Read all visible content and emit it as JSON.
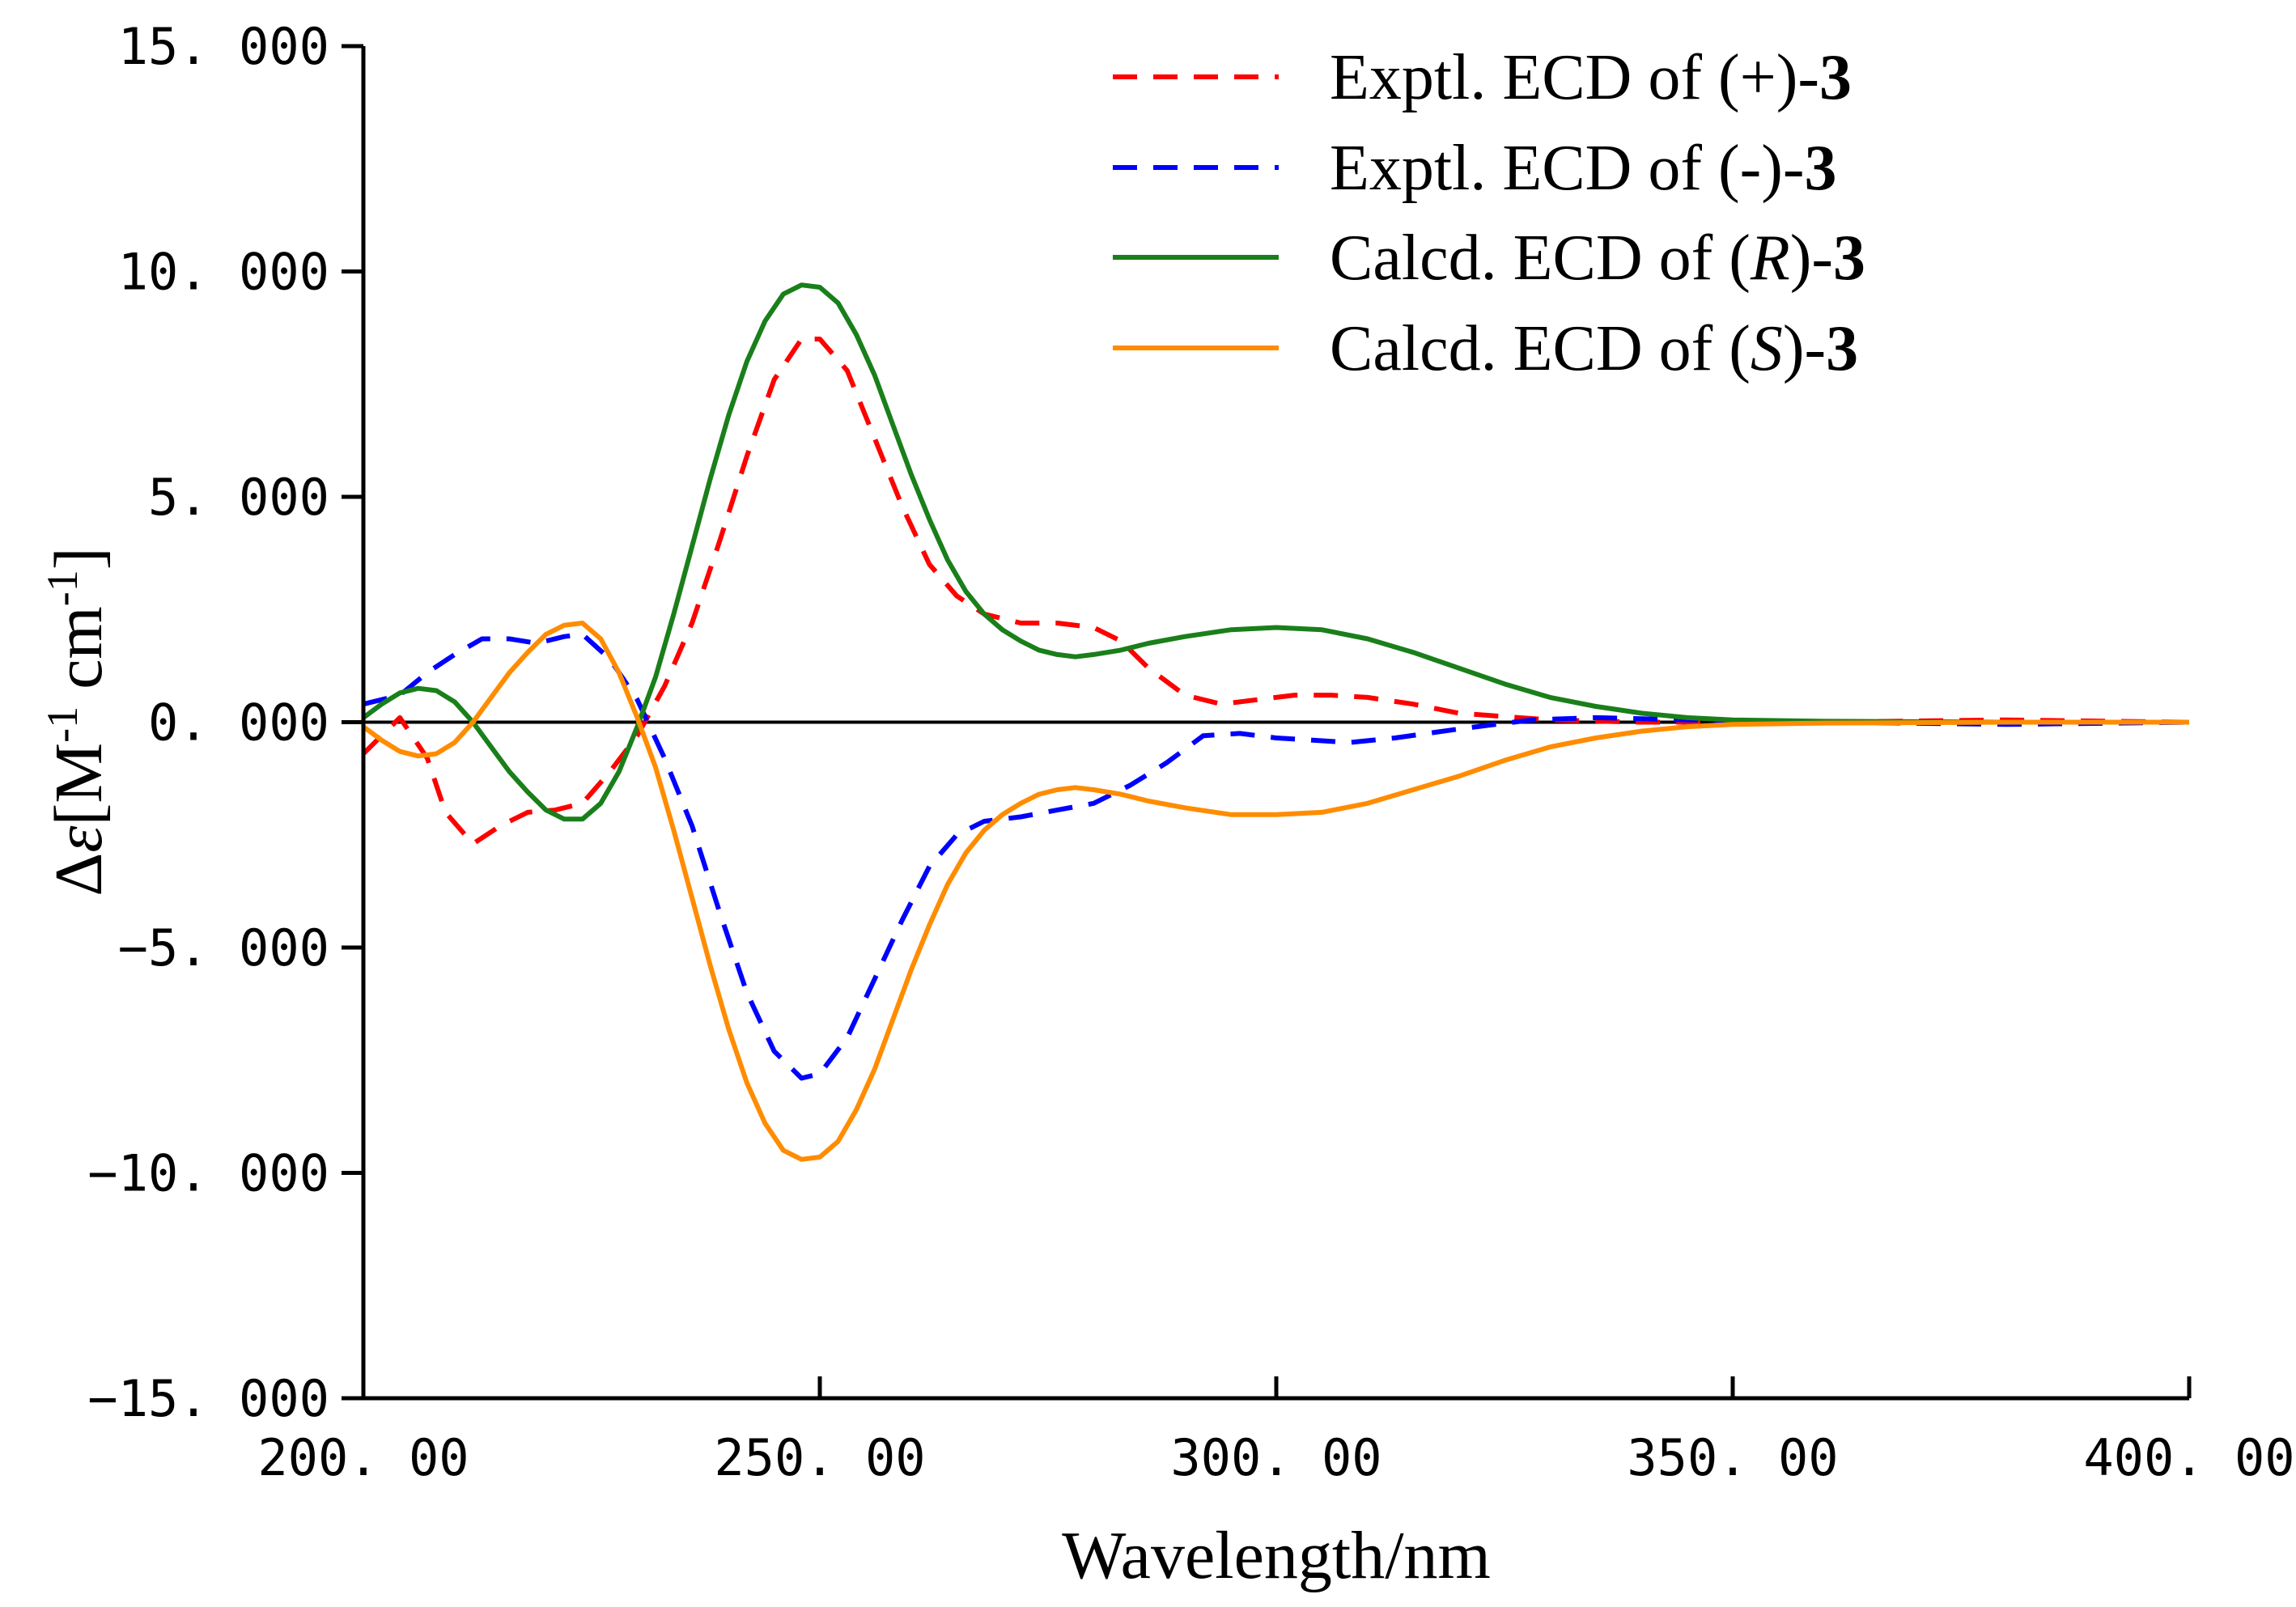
{
  "chart_data": {
    "type": "line",
    "xlabel": "Wavelength/nm",
    "ylabel": {
      "prefix": "Δ",
      "symbol": "ε",
      "open": "[M",
      "sup1": "-1",
      "mid": " cm",
      "sup2": "-1",
      "close": "]"
    },
    "xlim": [
      200,
      400
    ],
    "ylim": [
      -15,
      15
    ],
    "x_ticks": [
      200,
      250,
      300,
      350,
      400
    ],
    "x_tick_labels": [
      "200. 00",
      "250. 00",
      "300. 00",
      "350. 00",
      "400. 00"
    ],
    "y_ticks": [
      15,
      10,
      5,
      0,
      -5,
      -10,
      -15
    ],
    "y_tick_labels": [
      "15. 000",
      "10. 000",
      "5. 000",
      "0. 000",
      "−5. 000",
      "−10. 000",
      "−15. 000"
    ],
    "grid": false,
    "legend_position": "top-right",
    "series": [
      {
        "name": {
          "prefix": "Exptl. ECD of (+)-",
          "compound": "3"
        },
        "color": "#ff0000",
        "style": "dashed",
        "points": [
          [
            200,
            -0.7
          ],
          [
            204,
            0.1
          ],
          [
            207,
            -0.8
          ],
          [
            209,
            -2.0
          ],
          [
            212,
            -2.7
          ],
          [
            215,
            -2.3
          ],
          [
            218,
            -2.0
          ],
          [
            221,
            -1.95
          ],
          [
            224,
            -1.8
          ],
          [
            227,
            -1.1
          ],
          [
            230,
            -0.3
          ],
          [
            233,
            0.8
          ],
          [
            236,
            2.2
          ],
          [
            239,
            4.0
          ],
          [
            242,
            5.9
          ],
          [
            245,
            7.6
          ],
          [
            248,
            8.5
          ],
          [
            250,
            8.5
          ],
          [
            253,
            7.8
          ],
          [
            256,
            6.3
          ],
          [
            259,
            4.8
          ],
          [
            262,
            3.5
          ],
          [
            265,
            2.8
          ],
          [
            268,
            2.4
          ],
          [
            272,
            2.2
          ],
          [
            276,
            2.2
          ],
          [
            280,
            2.1
          ],
          [
            283,
            1.8
          ],
          [
            286,
            1.2
          ],
          [
            290,
            0.6
          ],
          [
            294,
            0.4
          ],
          [
            298,
            0.5
          ],
          [
            302,
            0.6
          ],
          [
            306,
            0.6
          ],
          [
            310,
            0.55
          ],
          [
            315,
            0.4
          ],
          [
            320,
            0.2
          ],
          [
            330,
            0.05
          ],
          [
            340,
            0.0
          ],
          [
            360,
            0.0
          ],
          [
            380,
            0.05
          ],
          [
            400,
            0.0
          ]
        ]
      },
      {
        "name": {
          "prefix": "Exptl. ECD of (-)-",
          "compound": "3"
        },
        "color": "#0000ff",
        "style": "dashed",
        "points": [
          [
            200,
            0.4
          ],
          [
            204,
            0.6
          ],
          [
            207,
            1.1
          ],
          [
            210,
            1.5
          ],
          [
            213,
            1.85
          ],
          [
            216,
            1.85
          ],
          [
            219,
            1.75
          ],
          [
            222,
            1.9
          ],
          [
            224,
            1.95
          ],
          [
            227,
            1.4
          ],
          [
            230,
            0.5
          ],
          [
            233,
            -0.8
          ],
          [
            236,
            -2.3
          ],
          [
            239,
            -4.2
          ],
          [
            242,
            -6.0
          ],
          [
            245,
            -7.3
          ],
          [
            248,
            -7.9
          ],
          [
            250,
            -7.8
          ],
          [
            253,
            -7.0
          ],
          [
            256,
            -5.7
          ],
          [
            259,
            -4.4
          ],
          [
            262,
            -3.2
          ],
          [
            265,
            -2.5
          ],
          [
            268,
            -2.2
          ],
          [
            272,
            -2.1
          ],
          [
            276,
            -1.95
          ],
          [
            280,
            -1.8
          ],
          [
            284,
            -1.4
          ],
          [
            288,
            -0.9
          ],
          [
            292,
            -0.3
          ],
          [
            296,
            -0.25
          ],
          [
            300,
            -0.35
          ],
          [
            304,
            -0.4
          ],
          [
            308,
            -0.45
          ],
          [
            313,
            -0.35
          ],
          [
            320,
            -0.15
          ],
          [
            328,
            0.05
          ],
          [
            335,
            0.1
          ],
          [
            345,
            0.05
          ],
          [
            360,
            0.0
          ],
          [
            380,
            -0.05
          ],
          [
            400,
            0.0
          ]
        ]
      },
      {
        "name": {
          "prefix": "Calcd. ECD of (",
          "italic": "R",
          "mid": ")-",
          "compound": "3"
        },
        "color": "#1a7f1a",
        "style": "solid",
        "points": [
          [
            200,
            0.1
          ],
          [
            202,
            0.4
          ],
          [
            204,
            0.65
          ],
          [
            206,
            0.75
          ],
          [
            208,
            0.7
          ],
          [
            210,
            0.45
          ],
          [
            212,
            0.0
          ],
          [
            214,
            -0.55
          ],
          [
            216,
            -1.1
          ],
          [
            218,
            -1.55
          ],
          [
            220,
            -1.95
          ],
          [
            222,
            -2.15
          ],
          [
            224,
            -2.15
          ],
          [
            226,
            -1.8
          ],
          [
            228,
            -1.1
          ],
          [
            230,
            -0.1
          ],
          [
            232,
            1.0
          ],
          [
            234,
            2.4
          ],
          [
            236,
            3.9
          ],
          [
            238,
            5.4
          ],
          [
            240,
            6.8
          ],
          [
            242,
            8.0
          ],
          [
            244,
            8.9
          ],
          [
            246,
            9.5
          ],
          [
            248,
            9.7
          ],
          [
            250,
            9.65
          ],
          [
            252,
            9.3
          ],
          [
            254,
            8.6
          ],
          [
            256,
            7.7
          ],
          [
            258,
            6.6
          ],
          [
            260,
            5.5
          ],
          [
            262,
            4.5
          ],
          [
            264,
            3.6
          ],
          [
            266,
            2.9
          ],
          [
            268,
            2.4
          ],
          [
            270,
            2.05
          ],
          [
            272,
            1.8
          ],
          [
            274,
            1.6
          ],
          [
            276,
            1.5
          ],
          [
            278,
            1.45
          ],
          [
            280,
            1.5
          ],
          [
            283,
            1.6
          ],
          [
            286,
            1.75
          ],
          [
            290,
            1.9
          ],
          [
            295,
            2.05
          ],
          [
            300,
            2.1
          ],
          [
            305,
            2.05
          ],
          [
            310,
            1.85
          ],
          [
            315,
            1.55
          ],
          [
            320,
            1.2
          ],
          [
            325,
            0.85
          ],
          [
            330,
            0.55
          ],
          [
            335,
            0.35
          ],
          [
            340,
            0.2
          ],
          [
            345,
            0.1
          ],
          [
            350,
            0.05
          ],
          [
            360,
            0.02
          ],
          [
            380,
            0.0
          ],
          [
            400,
            0.0
          ]
        ]
      },
      {
        "name": {
          "prefix": "Calcd. ECD of (",
          "italic": "S",
          "mid": ")-",
          "compound": "3"
        },
        "color": "#ff8c00",
        "style": "solid",
        "points": [
          [
            200,
            -0.1
          ],
          [
            202,
            -0.4
          ],
          [
            204,
            -0.65
          ],
          [
            206,
            -0.75
          ],
          [
            208,
            -0.7
          ],
          [
            210,
            -0.45
          ],
          [
            212,
            0.0
          ],
          [
            214,
            0.55
          ],
          [
            216,
            1.1
          ],
          [
            218,
            1.55
          ],
          [
            220,
            1.95
          ],
          [
            222,
            2.15
          ],
          [
            224,
            2.2
          ],
          [
            226,
            1.85
          ],
          [
            228,
            1.1
          ],
          [
            230,
            0.1
          ],
          [
            232,
            -1.0
          ],
          [
            234,
            -2.4
          ],
          [
            236,
            -3.9
          ],
          [
            238,
            -5.4
          ],
          [
            240,
            -6.8
          ],
          [
            242,
            -8.0
          ],
          [
            244,
            -8.9
          ],
          [
            246,
            -9.5
          ],
          [
            248,
            -9.7
          ],
          [
            250,
            -9.65
          ],
          [
            252,
            -9.3
          ],
          [
            254,
            -8.6
          ],
          [
            256,
            -7.7
          ],
          [
            258,
            -6.6
          ],
          [
            260,
            -5.5
          ],
          [
            262,
            -4.5
          ],
          [
            264,
            -3.6
          ],
          [
            266,
            -2.9
          ],
          [
            268,
            -2.4
          ],
          [
            270,
            -2.05
          ],
          [
            272,
            -1.8
          ],
          [
            274,
            -1.6
          ],
          [
            276,
            -1.5
          ],
          [
            278,
            -1.45
          ],
          [
            280,
            -1.5
          ],
          [
            283,
            -1.6
          ],
          [
            286,
            -1.75
          ],
          [
            290,
            -1.9
          ],
          [
            295,
            -2.05
          ],
          [
            300,
            -2.05
          ],
          [
            305,
            -2.0
          ],
          [
            310,
            -1.8
          ],
          [
            315,
            -1.5
          ],
          [
            320,
            -1.2
          ],
          [
            325,
            -0.85
          ],
          [
            330,
            -0.55
          ],
          [
            335,
            -0.35
          ],
          [
            340,
            -0.2
          ],
          [
            345,
            -0.1
          ],
          [
            350,
            -0.05
          ],
          [
            360,
            -0.02
          ],
          [
            380,
            0.0
          ],
          [
            400,
            0.0
          ]
        ]
      }
    ]
  }
}
